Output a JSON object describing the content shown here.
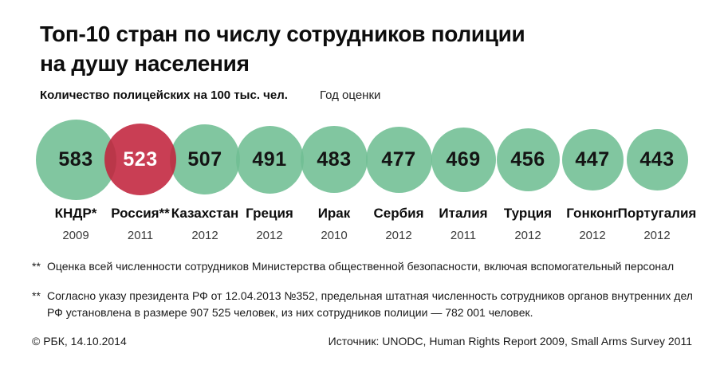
{
  "header": {
    "title_line1": "Топ-10 стран по числу сотрудников полиции",
    "title_line2": "на душу населения",
    "value_label": "Количество полицейских на 100 тыс. чел.",
    "year_label": "Год оценки"
  },
  "chart_data": {
    "type": "bubble",
    "title": "Топ-10 стран по числу сотрудников полиции на душу населения",
    "value_label": "Количество полицейских на 100 тыс. чел.",
    "year_label": "Год оценки",
    "legend_position": "none",
    "items": [
      {
        "country": "КНДР*",
        "year": "2009",
        "value": 583,
        "highlight": false
      },
      {
        "country": "Россия**",
        "year": "2011",
        "value": 523,
        "highlight": true
      },
      {
        "country": "Казахстан",
        "year": "2012",
        "value": 507,
        "highlight": false
      },
      {
        "country": "Греция",
        "year": "2012",
        "value": 491,
        "highlight": false
      },
      {
        "country": "Ирак",
        "year": "2010",
        "value": 483,
        "highlight": false
      },
      {
        "country": "Сербия",
        "year": "2012",
        "value": 477,
        "highlight": false
      },
      {
        "country": "Италия",
        "year": "2011",
        "value": 469,
        "highlight": false
      },
      {
        "country": "Турция",
        "year": "2012",
        "value": 456,
        "highlight": false
      },
      {
        "country": "Гонконг",
        "year": "2012",
        "value": 447,
        "highlight": false
      },
      {
        "country": "Португалия",
        "year": "2012",
        "value": 443,
        "highlight": false
      }
    ],
    "colors": {
      "bubble_default": "#6FBE93",
      "bubble_highlight": "#C2233C",
      "value_text_default": "#141414",
      "value_text_highlight": "#FFFFFF"
    }
  },
  "footnotes": [
    {
      "marker": "**",
      "text": "Оценка всей численности сотрудников Министерства общественной безопасности, включая вспомогательный персонал"
    },
    {
      "marker": "**",
      "text": "Согласно указу президента РФ от 12.04.2013 №352, предельная штатная численность сотрудников органов внутренних дел РФ установлена в размере 907 525 человек, из них сотрудников полиции — 782 001 человек."
    }
  ],
  "footer": {
    "copyright": "© РБК, 14.10.2014",
    "source": "Источник: UNODC, Human Rights Report 2009, Small Arms Survey 2011"
  }
}
